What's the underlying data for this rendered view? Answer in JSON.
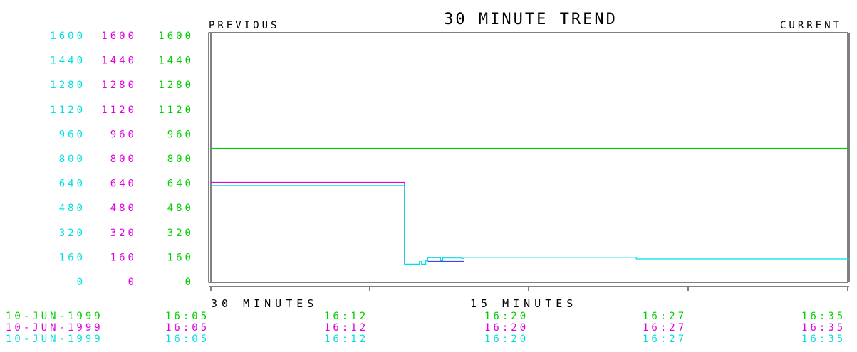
{
  "header": {
    "title": "30 MINUTE TREND",
    "left_label": "PREVIOUS",
    "right_label": "CURRENT"
  },
  "x_axis": {
    "left_label": "30 MINUTES",
    "middle_label": "15 MINUTES"
  },
  "colors": {
    "cyan": "#00e0e0",
    "magenta": "#e000e0",
    "green": "#00d000",
    "black": "#000000",
    "blue_segment": "#4040ff"
  },
  "chart_data": {
    "type": "line",
    "title": "30 MINUTE TREND",
    "x_unit": "minutes before current",
    "xlim": [
      -30,
      0
    ],
    "ylim": [
      0,
      1600
    ],
    "y_scales": [
      {
        "color": "#00e0e0",
        "ticks": [
          "1600",
          "1440",
          "1280",
          "1120",
          "960",
          "800",
          "640",
          "480",
          "320",
          "160",
          "0"
        ]
      },
      {
        "color": "#e000e0",
        "ticks": [
          "1600",
          "1440",
          "1280",
          "1120",
          "960",
          "800",
          "640",
          "480",
          "320",
          "160",
          "0"
        ]
      },
      {
        "color": "#00d000",
        "ticks": [
          "1600",
          "1440",
          "1280",
          "1120",
          "960",
          "800",
          "640",
          "480",
          "320",
          "160",
          "0"
        ]
      }
    ],
    "time_rows": [
      {
        "color": "#00d000",
        "date": "10-JUN-1999",
        "times": [
          "16:05",
          "16:12",
          "16:20",
          "16:27",
          "16:35"
        ]
      },
      {
        "color": "#e000e0",
        "date": "10-JUN-1999",
        "times": [
          "16:05",
          "16:12",
          "16:20",
          "16:27",
          "16:35"
        ]
      },
      {
        "color": "#00e0e0",
        "date": "10-JUN-1999",
        "times": [
          "16:05",
          "16:12",
          "16:20",
          "16:27",
          "16:35"
        ]
      }
    ],
    "series": [
      {
        "color": "#00d000",
        "x": [
          -30,
          0
        ],
        "y": [
          855,
          855
        ]
      },
      {
        "color": "#e000e0",
        "x": [
          -30,
          -20.9,
          -20.9
        ],
        "y": [
          635,
          635,
          110
        ]
      },
      {
        "color": "#00e0e0",
        "step": true,
        "x": [
          -30,
          -20.9,
          -20.4,
          -20.2,
          -20.1,
          -19.9,
          -19.8,
          -19.2,
          -19.1,
          -18.2,
          -18.1,
          -10.1,
          -10.0,
          0
        ],
        "y": [
          615,
          108,
          108,
          125,
          108,
          130,
          150,
          130,
          148,
          145,
          152,
          152,
          142,
          142
        ]
      },
      {
        "color": "#4040ff",
        "x": [
          -19.8,
          -18.1
        ],
        "y": [
          126,
          126
        ]
      }
    ]
  }
}
